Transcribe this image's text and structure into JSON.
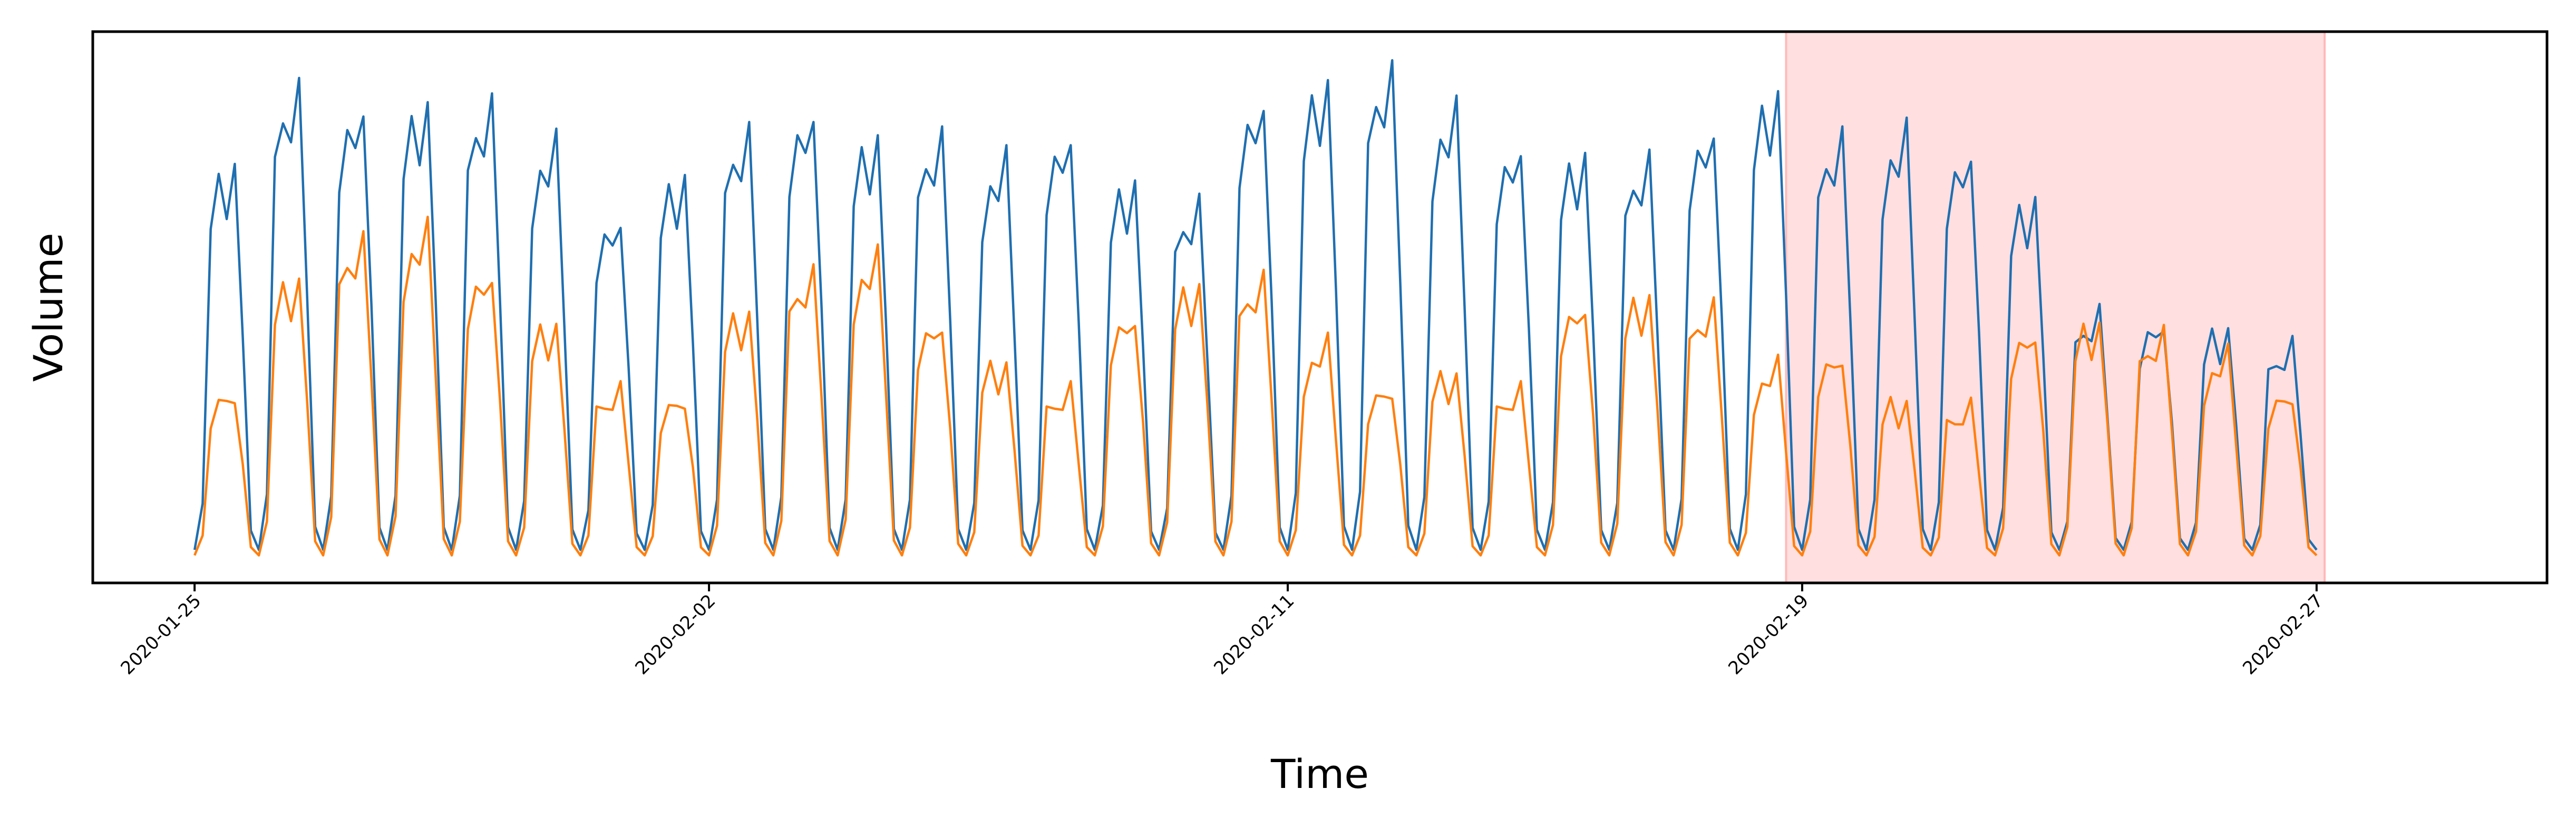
{
  "chart_data": {
    "type": "line",
    "xlabel": "Time",
    "ylabel": "Volume",
    "x_start": "2020-01-25T00:00",
    "x_end": "2020-02-27T00:00",
    "step_hours": 3,
    "xlim": [
      "2020-01-23T10:00",
      "2020-03-01T14:00"
    ],
    "ylim": [
      0,
      1
    ],
    "y_ticks_visible": false,
    "xticks": [
      {
        "x": "2020-01-25",
        "label": "2020-01-25"
      },
      {
        "x": "2020-02-02",
        "label": "2020-02-02"
      },
      {
        "x": "2020-02-11",
        "label": "2020-02-11"
      },
      {
        "x": "2020-02-19",
        "label": "2020-02-19"
      },
      {
        "x": "2020-02-27",
        "label": "2020-02-27"
      }
    ],
    "highlight": {
      "x_start": "2020-02-18T18:00",
      "x_end": "2020-02-27T03:00",
      "color": "#ffdfe0",
      "edge_color": "#ffb9b9"
    },
    "series": [
      {
        "color": "#1f6fb0",
        "daily_peaks": [
          0.76,
          0.9,
          0.87,
          0.88,
          0.88,
          0.8,
          0.66,
          0.74,
          0.82,
          0.86,
          0.82,
          0.82,
          0.77,
          0.81,
          0.73,
          0.69,
          0.88,
          0.92,
          0.94,
          0.86,
          0.79,
          0.78,
          0.77,
          0.83,
          0.9,
          0.82,
          0.82,
          0.78,
          0.7,
          0.49,
          0.48,
          0.47,
          0.44
        ],
        "night_low": 0.06
      },
      {
        "color": "#ff7f0e",
        "daily_peaks": [
          0.35,
          0.56,
          0.63,
          0.64,
          0.56,
          0.47,
          0.35,
          0.34,
          0.5,
          0.57,
          0.59,
          0.47,
          0.4,
          0.35,
          0.49,
          0.55,
          0.56,
          0.43,
          0.35,
          0.38,
          0.35,
          0.51,
          0.53,
          0.51,
          0.39,
          0.41,
          0.33,
          0.32,
          0.46,
          0.48,
          0.46,
          0.41,
          0.34
        ],
        "night_low": 0.05
      }
    ]
  }
}
